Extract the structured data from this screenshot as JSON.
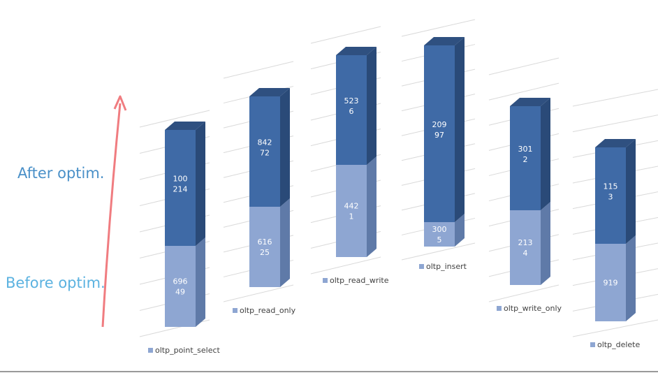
{
  "annotations": {
    "after": "After optim.",
    "before": "Before optim."
  },
  "colors": {
    "before_front": "#8ea6d2",
    "before_top": "#aabde0",
    "before_side": "#5f7aa8",
    "after_front": "#3f6aa6",
    "after_top": "#2f5080",
    "after_side": "#2a4a78",
    "grid": "#d9d9d9",
    "arrow": "#f07c80"
  },
  "chart_data": {
    "type": "bar",
    "stacked": true,
    "three_d": true,
    "grid": true,
    "categories": [
      "oltp_point_select",
      "oltp_read_only",
      "oltp_read_write",
      "oltp_insert",
      "oltp_write_only",
      "oltp_delete"
    ],
    "series": [
      {
        "values": [
          69649,
          61625,
          4421,
          3005,
          2134,
          919
        ],
        "labels": [
          [
            "696",
            "49"
          ],
          [
            "616",
            "25"
          ],
          [
            "442",
            "1"
          ],
          [
            "300",
            "5"
          ],
          [
            "213",
            "4"
          ],
          [
            "919"
          ]
        ]
      },
      {
        "values": [
          100214,
          84272,
          5236,
          20997,
          3012,
          1153
        ],
        "labels": [
          [
            "100",
            "214"
          ],
          [
            "842",
            "72"
          ],
          [
            "523",
            "6"
          ],
          [
            "209",
            "97"
          ],
          [
            "301",
            "2"
          ],
          [
            "115",
            "3"
          ]
        ]
      }
    ]
  }
}
